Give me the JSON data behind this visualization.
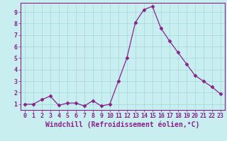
{
  "x": [
    0,
    1,
    2,
    3,
    4,
    5,
    6,
    7,
    8,
    9,
    10,
    11,
    12,
    13,
    14,
    15,
    16,
    17,
    18,
    19,
    20,
    21,
    22,
    23
  ],
  "y": [
    1.0,
    1.0,
    1.4,
    1.7,
    0.9,
    1.1,
    1.1,
    0.85,
    1.3,
    0.85,
    1.0,
    3.0,
    5.0,
    8.1,
    9.2,
    9.5,
    7.6,
    6.5,
    5.5,
    4.5,
    3.5,
    3.0,
    2.5,
    1.9
  ],
  "line_color": "#882288",
  "marker": "D",
  "marker_size": 2.5,
  "bg_color": "#c8eef0",
  "grid_color": "#a0d8dc",
  "xlabel": "Windchill (Refroidissement éolien,°C)",
  "xlim": [
    -0.5,
    23.5
  ],
  "ylim": [
    0.5,
    9.8
  ],
  "yticks": [
    1,
    2,
    3,
    4,
    5,
    6,
    7,
    8,
    9
  ],
  "xticks": [
    0,
    1,
    2,
    3,
    4,
    5,
    6,
    7,
    8,
    9,
    10,
    11,
    12,
    13,
    14,
    15,
    16,
    17,
    18,
    19,
    20,
    21,
    22,
    23
  ],
  "tick_fontsize": 6,
  "xlabel_fontsize": 7,
  "axis_color": "#882288",
  "spine_color": "#882288"
}
